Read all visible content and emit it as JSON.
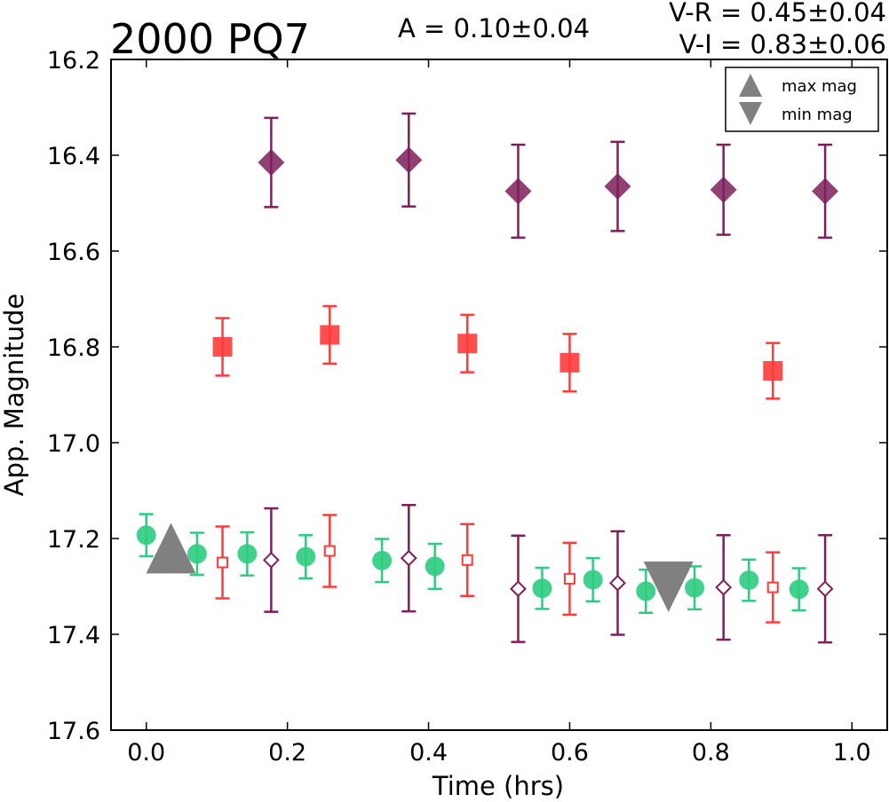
{
  "chart_data": {
    "type": "scatter",
    "title": "2000 PQ7",
    "amplitude": "A  = 0.10±0.04",
    "color_indices": [
      "V-R = 0.45±0.04",
      "V-I  = 0.83±0.06"
    ],
    "xlabel": "Time (hrs)",
    "ylabel": "App. Magnitude",
    "xlim": [
      -0.05,
      1.05
    ],
    "ylim": [
      17.6,
      16.2
    ],
    "y_inverted": true,
    "xticks": [
      "0.0",
      "0.2",
      "0.4",
      "0.6",
      "0.8",
      "1.0"
    ],
    "yticks": [
      "16.2",
      "16.4",
      "16.6",
      "16.8",
      "17.0",
      "17.2",
      "17.4",
      "17.6"
    ],
    "grid": false,
    "legend_position": "top-right",
    "legend": [
      {
        "label": "max mag",
        "marker": "triangle-up",
        "color": "#808080"
      },
      {
        "label": "min mag",
        "marker": "triangle-down",
        "color": "#808080"
      }
    ],
    "series": [
      {
        "marker": "diamond-filled",
        "color": "#7e1f5a",
        "points": [
          {
            "x": 0.177,
            "y": 16.415,
            "err": 0.093
          },
          {
            "x": 0.372,
            "y": 16.41,
            "err": 0.097
          },
          {
            "x": 0.527,
            "y": 16.475,
            "err": 0.097
          },
          {
            "x": 0.668,
            "y": 16.465,
            "err": 0.093
          },
          {
            "x": 0.818,
            "y": 16.472,
            "err": 0.094
          },
          {
            "x": 0.962,
            "y": 16.475,
            "err": 0.097
          }
        ]
      },
      {
        "marker": "square-filled",
        "color": "#ff3b3b",
        "points": [
          {
            "x": 0.108,
            "y": 16.8,
            "err": 0.06
          },
          {
            "x": 0.26,
            "y": 16.775,
            "err": 0.06
          },
          {
            "x": 0.455,
            "y": 16.793,
            "err": 0.06
          },
          {
            "x": 0.6,
            "y": 16.833,
            "err": 0.06
          },
          {
            "x": 0.888,
            "y": 16.85,
            "err": 0.058
          }
        ]
      },
      {
        "marker": "circle-filled",
        "color": "#2ecc7f",
        "points": [
          {
            "x": 0.0,
            "y": 17.193,
            "err": 0.044
          },
          {
            "x": 0.072,
            "y": 17.232,
            "err": 0.044
          },
          {
            "x": 0.143,
            "y": 17.232,
            "err": 0.045
          },
          {
            "x": 0.226,
            "y": 17.238,
            "err": 0.045
          },
          {
            "x": 0.334,
            "y": 17.246,
            "err": 0.045
          },
          {
            "x": 0.409,
            "y": 17.258,
            "err": 0.047
          },
          {
            "x": 0.561,
            "y": 17.304,
            "err": 0.043
          },
          {
            "x": 0.633,
            "y": 17.286,
            "err": 0.045
          },
          {
            "x": 0.708,
            "y": 17.31,
            "err": 0.045
          },
          {
            "x": 0.777,
            "y": 17.303,
            "err": 0.045
          },
          {
            "x": 0.854,
            "y": 17.287,
            "err": 0.043
          },
          {
            "x": 0.925,
            "y": 17.306,
            "err": 0.044
          }
        ]
      },
      {
        "marker": "square-open",
        "color": "#ff3b3b",
        "points": [
          {
            "x": 0.108,
            "y": 17.25,
            "err": 0.075
          },
          {
            "x": 0.26,
            "y": 17.226,
            "err": 0.075
          },
          {
            "x": 0.455,
            "y": 17.245,
            "err": 0.075
          },
          {
            "x": 0.6,
            "y": 17.284,
            "err": 0.075
          },
          {
            "x": 0.888,
            "y": 17.302,
            "err": 0.073
          }
        ]
      },
      {
        "marker": "diamond-open",
        "color": "#7e1f5a",
        "points": [
          {
            "x": 0.177,
            "y": 17.245,
            "err": 0.108
          },
          {
            "x": 0.372,
            "y": 17.241,
            "err": 0.111
          },
          {
            "x": 0.527,
            "y": 17.305,
            "err": 0.111
          },
          {
            "x": 0.668,
            "y": 17.293,
            "err": 0.108
          },
          {
            "x": 0.818,
            "y": 17.302,
            "err": 0.109
          },
          {
            "x": 0.962,
            "y": 17.305,
            "err": 0.112
          }
        ]
      }
    ],
    "extrema": [
      {
        "type": "max",
        "marker": "triangle-up",
        "color": "#808080",
        "x": 0.035,
        "y": 17.223
      },
      {
        "type": "min",
        "marker": "triangle-down",
        "color": "#808080",
        "x": 0.74,
        "y": 17.298
      }
    ]
  }
}
